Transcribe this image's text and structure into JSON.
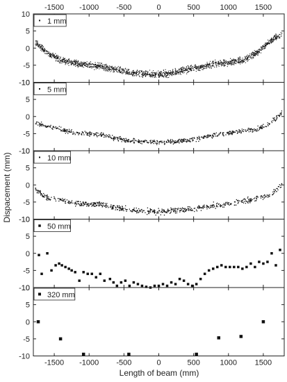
{
  "figure": {
    "ylabel": "Dispacement (mm)",
    "xlabel": "Length of beam (mm)"
  },
  "chart_data": {
    "type": "scatter",
    "xlim": [
      -1800,
      1800
    ],
    "ylim": [
      -10,
      10
    ],
    "x_ticks": [
      -1500,
      -1000,
      -500,
      0,
      500,
      1000,
      1500
    ],
    "y_ticks": [
      -10,
      -5,
      0,
      5,
      10
    ],
    "grid": false,
    "legend_position": "top-left",
    "marker_color": "#111111",
    "panels": [
      {
        "legend": "1 mm",
        "marker_size": 1.1,
        "density": "dense",
        "profile": [
          [
            -1750,
            1.5
          ],
          [
            -1600,
            -1.5
          ],
          [
            -1400,
            -3.5
          ],
          [
            -1200,
            -4.5
          ],
          [
            -1000,
            -5
          ],
          [
            -800,
            -5.5
          ],
          [
            -600,
            -6.3
          ],
          [
            -400,
            -7.3
          ],
          [
            -200,
            -7.6
          ],
          [
            0,
            -7.8
          ],
          [
            200,
            -7.2
          ],
          [
            400,
            -6.3
          ],
          [
            600,
            -5.6
          ],
          [
            800,
            -4.6
          ],
          [
            1000,
            -4.2
          ],
          [
            1200,
            -3.5
          ],
          [
            1400,
            -1.5
          ],
          [
            1600,
            2
          ],
          [
            1760,
            4
          ]
        ],
        "spread": 1.4
      },
      {
        "legend": "5 mm",
        "marker_size": 1.3,
        "density": "medium",
        "profile": [
          [
            -1750,
            -2
          ],
          [
            -1600,
            -3
          ],
          [
            -1400,
            -3.8
          ],
          [
            -1200,
            -4.8
          ],
          [
            -1000,
            -5
          ],
          [
            -800,
            -5.5
          ],
          [
            -600,
            -6.6
          ],
          [
            -400,
            -7.1
          ],
          [
            -200,
            -7.3
          ],
          [
            0,
            -7.6
          ],
          [
            200,
            -7.3
          ],
          [
            400,
            -7
          ],
          [
            600,
            -6.3
          ],
          [
            800,
            -5.5
          ],
          [
            1000,
            -4.8
          ],
          [
            1200,
            -4.2
          ],
          [
            1400,
            -3.8
          ],
          [
            1600,
            -2
          ],
          [
            1760,
            1
          ]
        ],
        "spread": 1.0
      },
      {
        "legend": "10 mm",
        "marker_size": 1.3,
        "density": "medium",
        "profile": [
          [
            -1750,
            -1.5
          ],
          [
            -1600,
            -4
          ],
          [
            -1400,
            -4.5
          ],
          [
            -1200,
            -5.5
          ],
          [
            -1000,
            -5.6
          ],
          [
            -800,
            -5.8
          ],
          [
            -600,
            -6.7
          ],
          [
            -400,
            -7.3
          ],
          [
            -200,
            -7.6
          ],
          [
            0,
            -7.9
          ],
          [
            200,
            -7.6
          ],
          [
            400,
            -7.3
          ],
          [
            600,
            -6.6
          ],
          [
            800,
            -6
          ],
          [
            1000,
            -5.5
          ],
          [
            1200,
            -4.8
          ],
          [
            1400,
            -4
          ],
          [
            1600,
            -3
          ],
          [
            1760,
            0
          ]
        ],
        "spread": 1.2
      },
      {
        "legend": "50 mm",
        "marker_size": 3.5,
        "points": [
          [
            -1720,
            -0.5
          ],
          [
            -1680,
            -6
          ],
          [
            -1600,
            0
          ],
          [
            -1540,
            -5
          ],
          [
            -1480,
            -3.5
          ],
          [
            -1430,
            -3
          ],
          [
            -1390,
            -3.5
          ],
          [
            -1340,
            -4
          ],
          [
            -1290,
            -4.5
          ],
          [
            -1250,
            -5
          ],
          [
            -1200,
            -5.5
          ],
          [
            -1140,
            -8
          ],
          [
            -1080,
            -5.5
          ],
          [
            -1020,
            -6
          ],
          [
            -960,
            -6
          ],
          [
            -900,
            -7
          ],
          [
            -840,
            -6
          ],
          [
            -780,
            -8
          ],
          [
            -700,
            -7.5
          ],
          [
            -650,
            -8.5
          ],
          [
            -600,
            -9.5
          ],
          [
            -540,
            -8.5
          ],
          [
            -480,
            -8
          ],
          [
            -420,
            -9.5
          ],
          [
            -360,
            -8.5
          ],
          [
            -300,
            -9
          ],
          [
            -240,
            -9.5
          ],
          [
            -180,
            -9.8
          ],
          [
            -120,
            -10
          ],
          [
            -60,
            -9.5
          ],
          [
            0,
            -9.5
          ],
          [
            60,
            -9
          ],
          [
            120,
            -9.5
          ],
          [
            180,
            -8.5
          ],
          [
            240,
            -9
          ],
          [
            300,
            -7.5
          ],
          [
            360,
            -8
          ],
          [
            420,
            -9
          ],
          [
            480,
            -9.5
          ],
          [
            540,
            -9
          ],
          [
            600,
            -7.5
          ],
          [
            660,
            -6
          ],
          [
            720,
            -5
          ],
          [
            780,
            -4.5
          ],
          [
            840,
            -4
          ],
          [
            900,
            -3.5
          ],
          [
            960,
            -4
          ],
          [
            1020,
            -4
          ],
          [
            1080,
            -4
          ],
          [
            1140,
            -4
          ],
          [
            1200,
            -4.5
          ],
          [
            1260,
            -4
          ],
          [
            1320,
            -3
          ],
          [
            1380,
            -4
          ],
          [
            1440,
            -2.5
          ],
          [
            1500,
            -3
          ],
          [
            1560,
            -2.5
          ],
          [
            1620,
            0
          ],
          [
            1680,
            -3.5
          ],
          [
            1740,
            1
          ]
        ]
      },
      {
        "legend": "320 mm",
        "marker_size": 4.5,
        "points": [
          [
            -1730,
            0
          ],
          [
            -1410,
            -5
          ],
          [
            -1080,
            -9.5
          ],
          [
            -430,
            -9.5
          ],
          [
            540,
            -9.5
          ],
          [
            860,
            -4.7
          ],
          [
            1180,
            -4.3
          ],
          [
            1500,
            0
          ]
        ]
      }
    ]
  }
}
